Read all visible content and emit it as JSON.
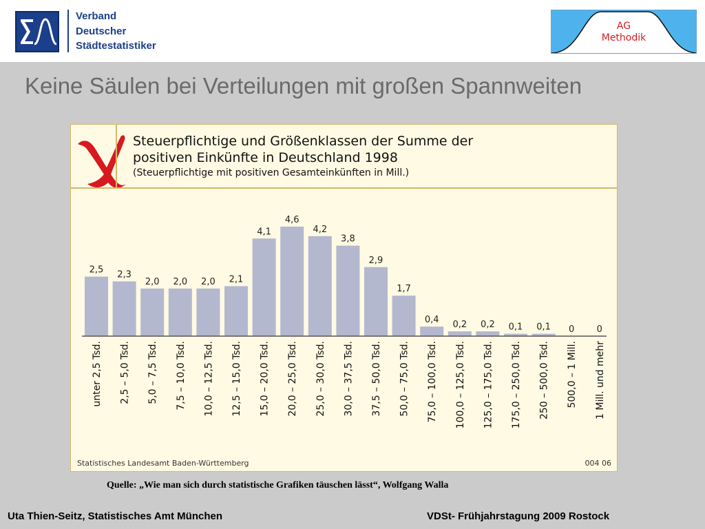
{
  "header": {
    "vds_logo": {
      "icon": "sigma-curve-icon",
      "lines": [
        "Verband",
        "Deutscher",
        "Städtestatistiker"
      ],
      "color": "#1b3f8a"
    },
    "ag_logo": {
      "lines": [
        "AG",
        "Methodik"
      ],
      "background": "#4eb3ec",
      "text_color": "#d21e1e"
    }
  },
  "slide": {
    "title": "Keine Säulen bei Verteilungen mit großen Spannweiten",
    "source_note": "Quelle: „Wie man sich durch statistische Grafiken täuschen lässt“, Wolfgang Walla"
  },
  "chart_panel": {
    "icon": "red-cross-mark-icon",
    "background": "#fffae3",
    "bar_color": "#b3b8cf",
    "cross_color": "#d71920"
  },
  "chart_data": {
    "type": "bar",
    "title": "Steuerpflichtige und Größenklassen der Summe der positiven Einkünfte in Deutschland 1998",
    "title_lines": [
      "Steuerpflichtige und Größenklassen der Summe der",
      "positiven Einkünfte in Deutschland 1998"
    ],
    "subtitle": "(Steuerpflichtige mit positiven Gesamteinkünften in Mill.)",
    "xlabel": "",
    "ylabel": "",
    "categories": [
      "unter 2,5 Tsd.",
      "2,5 – 5,0 Tsd.",
      "5,0 – 7,5 Tsd.",
      "7,5 – 10,0 Tsd.",
      "10,0 – 12,5 Tsd.",
      "12,5 – 15,0 Tsd.",
      "15,0 – 20,0 Tsd.",
      "20,0 – 25,0 Tsd.",
      "25,0 – 30,0 Tsd.",
      "30,0 – 37,5 Tsd.",
      "37,5 – 50,0 Tsd.",
      "50,0 – 75,0 Tsd.",
      "75,0 – 100,0 Tsd.",
      "100,0 – 125,0 Tsd.",
      "125,0 – 175,0 Tsd.",
      "175,0 – 250,0 Tsd.",
      "250 – 500,0 Tsd.",
      "500,0 – 1 Mill.",
      "1 Mill. und mehr"
    ],
    "values": [
      2.5,
      2.3,
      2.0,
      2.0,
      2.0,
      2.1,
      4.1,
      4.6,
      4.2,
      3.8,
      2.9,
      1.7,
      0.4,
      0.2,
      0.2,
      0.1,
      0.1,
      0,
      0
    ],
    "value_labels": [
      "2,5",
      "2,3",
      "2,0",
      "2,0",
      "2,0",
      "2,1",
      "4,1",
      "4,6",
      "4,2",
      "3,8",
      "2,9",
      "1,7",
      "0,4",
      "0,2",
      "0,2",
      "0,1",
      "0,1",
      "0",
      "0"
    ],
    "ylim": [
      0,
      4.6
    ],
    "grid": false,
    "legend": "none",
    "source": "Statistisches Landesamt Baden-Württemberg",
    "code": "004 06"
  },
  "footer": {
    "left": "Uta Thien-Seitz, Statistisches Amt München",
    "right": "VDSt- Frühjahrstagung 2009 Rostock"
  }
}
